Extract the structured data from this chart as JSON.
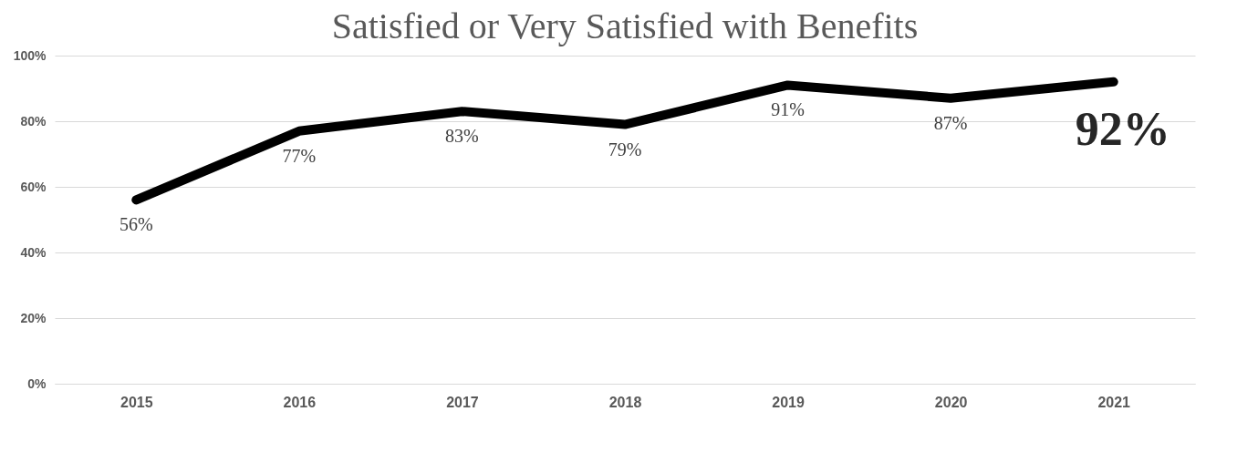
{
  "chart_data": {
    "type": "line",
    "title": "Satisfied or Very Satisfied with Benefits",
    "categories": [
      "2015",
      "2016",
      "2017",
      "2018",
      "2019",
      "2020",
      "2021"
    ],
    "series": [
      {
        "color": "#000000",
        "values": [
          56,
          77,
          83,
          79,
          91,
          87,
          92
        ],
        "value_labels": [
          "56%",
          "77%",
          "83%",
          "79%",
          "91%",
          "87%",
          "92%"
        ]
      }
    ],
    "ylim": [
      0,
      100
    ],
    "yticks": [
      {
        "value": 0,
        "label": "0%"
      },
      {
        "value": 20,
        "label": "20%"
      },
      {
        "value": 40,
        "label": "40%"
      },
      {
        "value": 60,
        "label": "60%"
      },
      {
        "value": 80,
        "label": "80%"
      },
      {
        "value": 100,
        "label": "100%"
      }
    ],
    "grid": "y",
    "marker": "none",
    "line_style": "solid"
  }
}
